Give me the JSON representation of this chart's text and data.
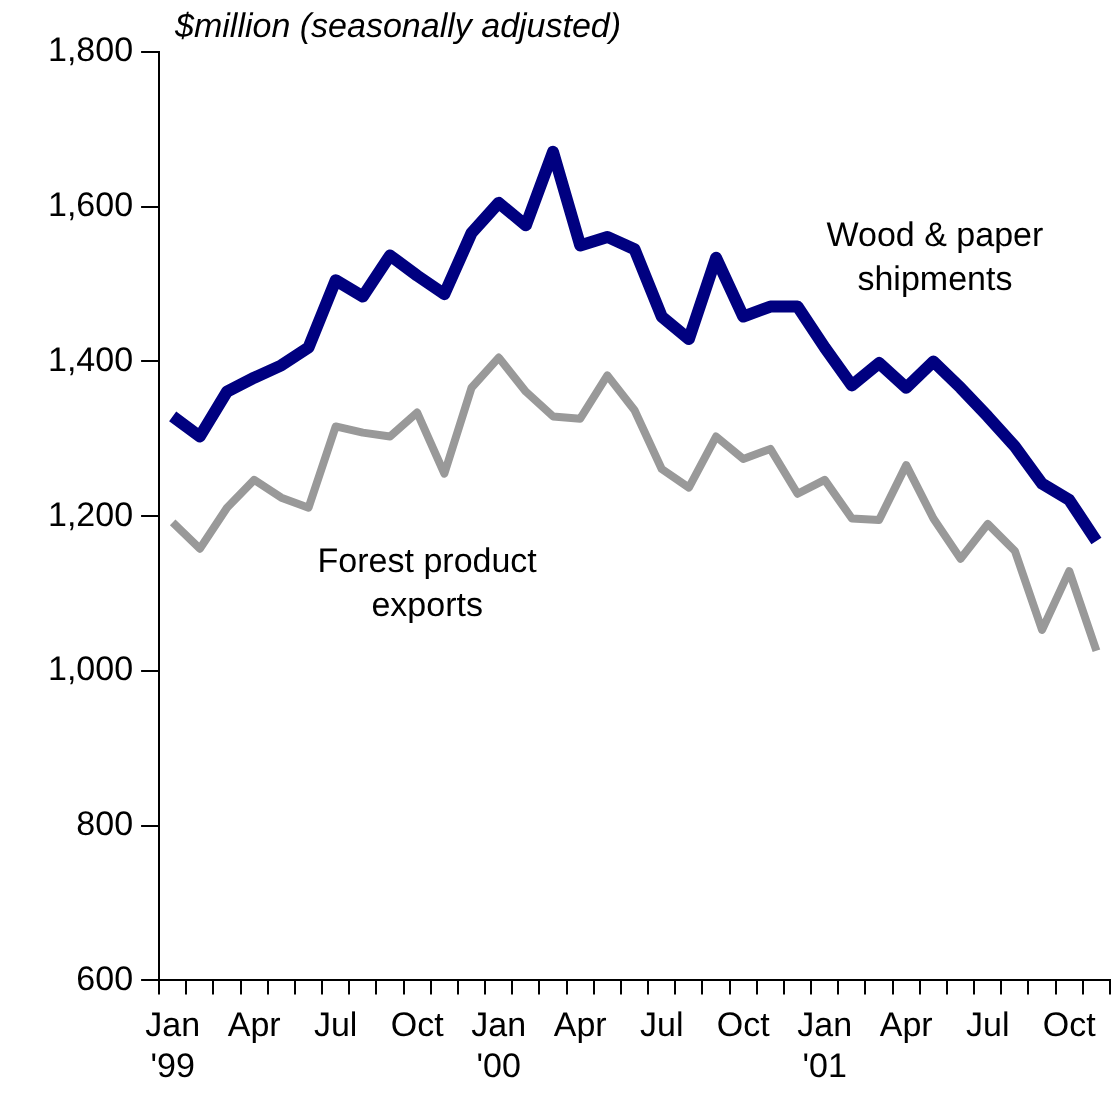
{
  "chart_data": {
    "type": "line",
    "ylabel": "$million (seasonally adjusted)",
    "categories": [
      "Jan\n'99",
      null,
      null,
      "Apr",
      null,
      null,
      "Jul",
      null,
      null,
      "Oct",
      null,
      null,
      "Jan\n'00",
      null,
      null,
      "Apr",
      null,
      null,
      "Jul",
      null,
      null,
      "Oct",
      null,
      null,
      "Jan\n'01",
      null,
      null,
      "Apr",
      null,
      null,
      "Jul",
      null,
      null,
      "Oct",
      null
    ],
    "series": [
      {
        "name": "Wood & paper shipments",
        "color": "#000080",
        "values": [
          1329,
          1303,
          1361,
          1379,
          1395,
          1418,
          1505,
          1484,
          1537,
          1511,
          1487,
          1566,
          1605,
          1576,
          1671,
          1550,
          1561,
          1545,
          1458,
          1429,
          1534,
          1458,
          1471,
          1471,
          1418,
          1369,
          1398,
          1366,
          1400,
          1366,
          1329,
          1290,
          1242,
          1221,
          1168
        ]
      },
      {
        "name": "Forest product exports",
        "color": "#999999",
        "values": [
          1192,
          1158,
          1211,
          1247,
          1224,
          1211,
          1316,
          1308,
          1303,
          1334,
          1255,
          1366,
          1405,
          1361,
          1329,
          1326,
          1382,
          1337,
          1261,
          1237,
          1303,
          1274,
          1287,
          1229,
          1247,
          1197,
          1195,
          1266,
          1197,
          1145,
          1190,
          1155,
          1053,
          1129,
          1026
        ]
      }
    ],
    "ylim": [
      600,
      1800
    ],
    "yticks": [
      {
        "value": 600,
        "label": "600"
      },
      {
        "value": 800,
        "label": "800"
      },
      {
        "value": 1000,
        "label": "1,000"
      },
      {
        "value": 1200,
        "label": "1,200"
      },
      {
        "value": 1400,
        "label": "1,400"
      },
      {
        "value": 1600,
        "label": "1,600"
      },
      {
        "value": 1800,
        "label": "1,800"
      }
    ],
    "grid": false,
    "legend": false,
    "marker": "none",
    "line_style": "solid"
  }
}
